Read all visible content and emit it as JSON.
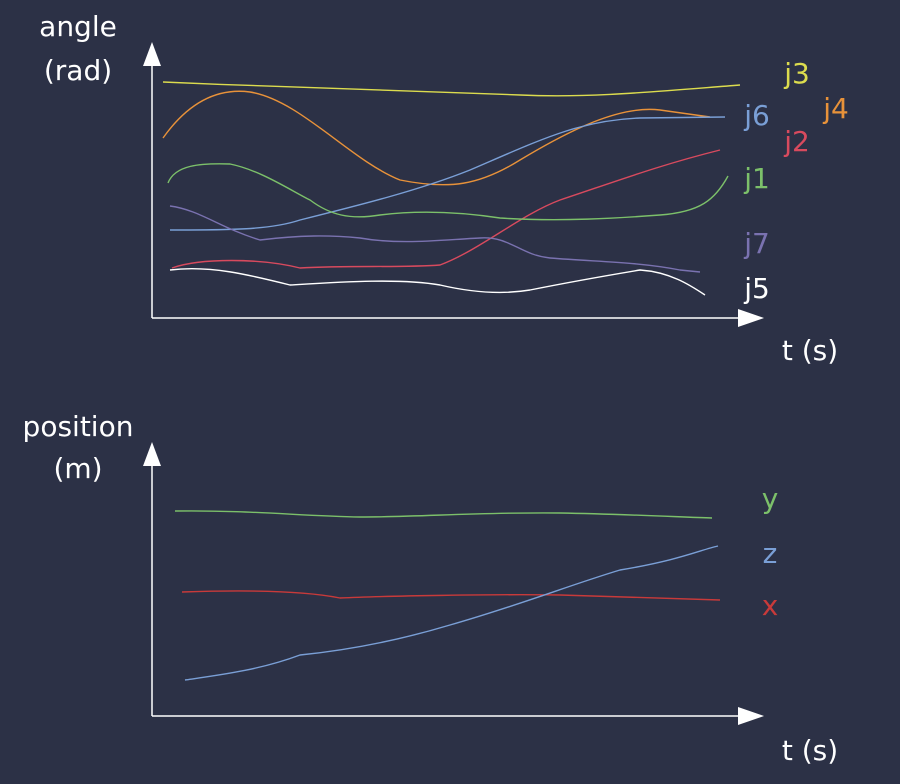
{
  "top_chart": {
    "y_label_line1": "angle",
    "y_label_line2": "(rad)",
    "x_label": "t (s)",
    "legend": [
      "j3",
      "j6",
      "j4",
      "j2",
      "j1",
      "j7",
      "j5"
    ]
  },
  "bottom_chart": {
    "y_label_line1": "position",
    "y_label_line2": "(m)",
    "x_label": "t (s)",
    "legend": [
      "y",
      "z",
      "x"
    ]
  }
}
